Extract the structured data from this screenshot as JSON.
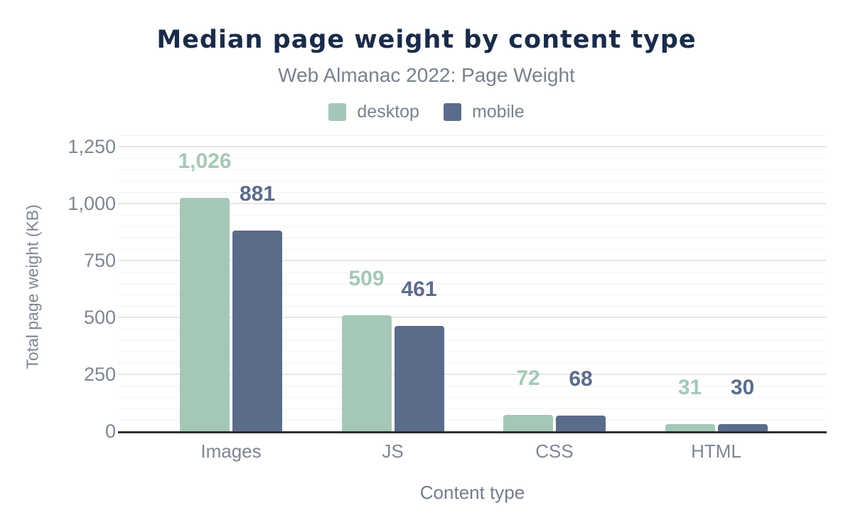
{
  "chart_data": {
    "type": "bar",
    "title": "Median page weight by content type",
    "subtitle": "Web Almanac 2022: Page Weight",
    "xlabel": "Content type",
    "ylabel": "Total page weight (KB)",
    "categories": [
      "Images",
      "JS",
      "CSS",
      "HTML"
    ],
    "series": [
      {
        "name": "desktop",
        "color": "#a5c8b6",
        "values": [
          1026,
          509,
          72,
          31
        ],
        "labels": [
          "1,026",
          "509",
          "72",
          "31"
        ]
      },
      {
        "name": "mobile",
        "color": "#5b6c8b",
        "values": [
          881,
          461,
          68,
          30
        ],
        "labels": [
          "881",
          "461",
          "68",
          "30"
        ]
      }
    ],
    "ylim": [
      0,
      1250
    ],
    "yticks": [
      0,
      250,
      500,
      750,
      1000,
      1250
    ],
    "ytick_labels": [
      "0",
      "250",
      "500",
      "750",
      "1,000",
      "1,250"
    ],
    "grid": "horizontal major every 250, minor every 50",
    "legend_position": "top-center"
  },
  "colors": {
    "title": "#1a2b49",
    "text_gray": "#7e8691",
    "axis_line": "#2f2f2f",
    "gridline_major": "#e6e6e6",
    "gridline_minor": "#f3f3f3",
    "desktop": "#a5c8b6",
    "mobile": "#5b6c8b"
  }
}
